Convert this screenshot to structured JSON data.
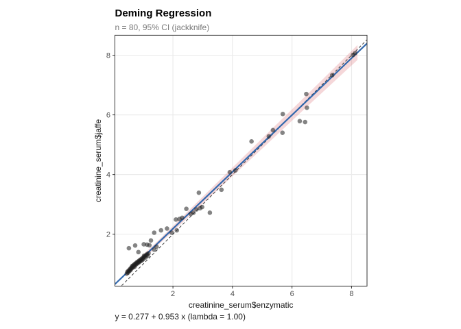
{
  "chart_data": {
    "type": "scatter",
    "title": "Deming Regression",
    "subtitle": "n = 80, 95% CI (jackknife)",
    "caption": "y = 0.277 + 0.953 x  (lambda = 1.00)",
    "xlabel": "creatinine_serum$enzymatic",
    "ylabel": "creatinine_serum$jaffe",
    "x_ticks": [
      2,
      4,
      6,
      8
    ],
    "y_ticks": [
      2,
      4,
      6,
      8
    ],
    "xlim": [
      0.05,
      8.52
    ],
    "ylim": [
      0.26,
      8.67
    ],
    "grid": "major-only",
    "legend_position": "none",
    "regression": {
      "intercept": 0.277,
      "slope": 0.953,
      "lambda": "1.00"
    },
    "identity_line": true,
    "ci_band": {
      "level": "95%",
      "method": "jackknife",
      "x": [
        0.42,
        1.5,
        3.0,
        5.0,
        6.5,
        8.2
      ],
      "half_width": [
        0.1,
        0.075,
        0.12,
        0.17,
        0.2,
        0.25
      ]
    },
    "points": [
      [
        8.05,
        8.01
      ],
      [
        8.12,
        8.07
      ],
      [
        7.35,
        7.33
      ],
      [
        6.48,
        6.7
      ],
      [
        6.5,
        6.24
      ],
      [
        6.44,
        5.76
      ],
      [
        6.26,
        5.79
      ],
      [
        5.69,
        6.03
      ],
      [
        5.68,
        5.4
      ],
      [
        5.36,
        5.49
      ],
      [
        5.22,
        5.28
      ],
      [
        4.64,
        5.11
      ],
      [
        4.1,
        4.14
      ],
      [
        3.91,
        4.08
      ],
      [
        3.63,
        3.49
      ],
      [
        3.24,
        2.72
      ],
      [
        2.87,
        3.39
      ],
      [
        2.98,
        2.91
      ],
      [
        2.91,
        2.87
      ],
      [
        2.79,
        2.83
      ],
      [
        2.69,
        2.72
      ],
      [
        2.6,
        2.68
      ],
      [
        2.45,
        2.85
      ],
      [
        2.31,
        2.55
      ],
      [
        2.22,
        2.51
      ],
      [
        2.1,
        2.49
      ],
      [
        2.13,
        2.13
      ],
      [
        1.96,
        2.05
      ],
      [
        1.8,
        2.19
      ],
      [
        1.6,
        2.13
      ],
      [
        1.45,
        1.58
      ],
      [
        1.37,
        2.05
      ],
      [
        1.37,
        1.48
      ],
      [
        1.26,
        1.79
      ],
      [
        1.21,
        1.63
      ],
      [
        0.73,
        1.62
      ],
      [
        1.02,
        1.66
      ],
      [
        1.13,
        1.65
      ],
      [
        0.52,
        1.53
      ],
      [
        0.84,
        1.4
      ],
      [
        1.03,
        1.28
      ],
      [
        0.45,
        0.68
      ],
      [
        0.47,
        0.74
      ],
      [
        0.49,
        0.71
      ],
      [
        0.51,
        0.78
      ],
      [
        0.53,
        0.76
      ],
      [
        0.55,
        0.82
      ],
      [
        0.57,
        0.79
      ],
      [
        0.58,
        0.86
      ],
      [
        0.6,
        0.84
      ],
      [
        0.62,
        0.89
      ],
      [
        0.63,
        0.93
      ],
      [
        0.65,
        0.88
      ],
      [
        0.66,
        0.95
      ],
      [
        0.68,
        0.92
      ],
      [
        0.7,
        0.98
      ],
      [
        0.71,
        0.91
      ],
      [
        0.72,
        1.0
      ],
      [
        0.74,
        0.97
      ],
      [
        0.76,
        1.03
      ],
      [
        0.78,
        1.0
      ],
      [
        0.79,
        1.06
      ],
      [
        0.81,
        1.03
      ],
      [
        0.83,
        1.08
      ],
      [
        0.85,
        1.05
      ],
      [
        0.86,
        1.11
      ],
      [
        0.88,
        1.08
      ],
      [
        0.9,
        1.14
      ],
      [
        0.92,
        1.1
      ],
      [
        0.94,
        1.17
      ],
      [
        0.96,
        1.13
      ],
      [
        0.98,
        1.2
      ],
      [
        1.0,
        1.16
      ],
      [
        1.02,
        1.23
      ],
      [
        1.05,
        1.26
      ],
      [
        1.08,
        1.22
      ],
      [
        1.1,
        1.3
      ],
      [
        1.13,
        1.33
      ],
      [
        1.15,
        1.28
      ],
      [
        1.18,
        1.36
      ]
    ],
    "colors": {
      "title": "#000000",
      "subtitle": "#7a7a7a",
      "axis_titles": "#1a1a1a",
      "tick_labels": "#4d4d4d",
      "grid": "#ebebeb",
      "panel_border": "#333333",
      "fit_line": "#3268ad",
      "ci_band": "#d96a74",
      "identity": "#3c3c3c",
      "points": "#1f1f1f"
    }
  }
}
